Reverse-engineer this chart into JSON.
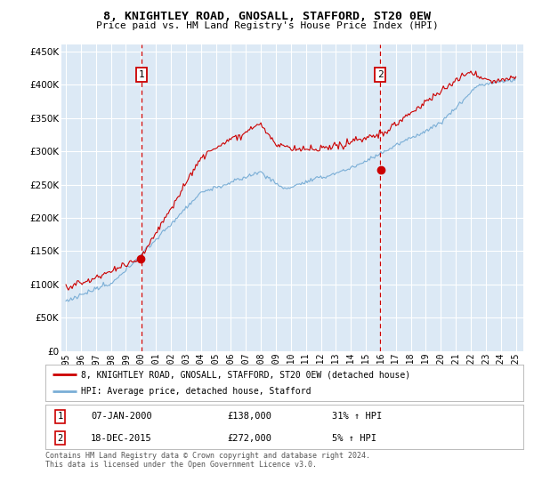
{
  "title": "8, KNIGHTLEY ROAD, GNOSALL, STAFFORD, ST20 0EW",
  "subtitle": "Price paid vs. HM Land Registry's House Price Index (HPI)",
  "background_color": "#ffffff",
  "plot_bg_color": "#dce9f5",
  "grid_color": "#ffffff",
  "house_color": "#cc0000",
  "hpi_color": "#7aaed6",
  "sale1_date_num": 2000.04,
  "sale1_price": 138000,
  "sale1_label": "1",
  "sale2_date_num": 2015.96,
  "sale2_price": 272000,
  "sale2_label": "2",
  "xmin": 1994.7,
  "xmax": 2025.5,
  "ymin": 0,
  "ymax": 460000,
  "yticks": [
    0,
    50000,
    100000,
    150000,
    200000,
    250000,
    300000,
    350000,
    400000,
    450000
  ],
  "xticks": [
    1995,
    1996,
    1997,
    1998,
    1999,
    2000,
    2001,
    2002,
    2003,
    2004,
    2005,
    2006,
    2007,
    2008,
    2009,
    2010,
    2011,
    2012,
    2013,
    2014,
    2015,
    2016,
    2017,
    2018,
    2019,
    2020,
    2021,
    2022,
    2023,
    2024,
    2025
  ],
  "legend_line1": "8, KNIGHTLEY ROAD, GNOSALL, STAFFORD, ST20 0EW (detached house)",
  "legend_line2": "HPI: Average price, detached house, Stafford",
  "table_row1_num": "1",
  "table_row1_date": "07-JAN-2000",
  "table_row1_price": "£138,000",
  "table_row1_hpi": "31% ↑ HPI",
  "table_row2_num": "2",
  "table_row2_date": "18-DEC-2015",
  "table_row2_price": "£272,000",
  "table_row2_hpi": "5% ↑ HPI",
  "footer": "Contains HM Land Registry data © Crown copyright and database right 2024.\nThis data is licensed under the Open Government Licence v3.0."
}
